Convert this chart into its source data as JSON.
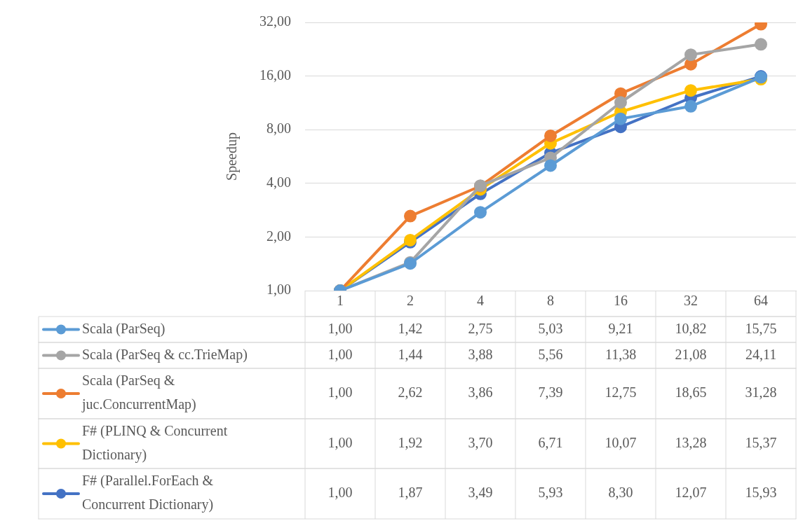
{
  "chart_data": {
    "type": "line",
    "ylabel": "Speedup",
    "categories": [
      "1",
      "2",
      "4",
      "8",
      "16",
      "32",
      "64"
    ],
    "log": "y",
    "ylim": [
      1,
      32
    ],
    "yticks": [
      {
        "value": 1,
        "label": "1,00"
      },
      {
        "value": 2,
        "label": "2,00"
      },
      {
        "value": 4,
        "label": "4,00"
      },
      {
        "value": 8,
        "label": "8,00"
      },
      {
        "value": 16,
        "label": "16,00"
      },
      {
        "value": 32,
        "label": "32,00"
      }
    ],
    "grid": "y",
    "legend": "bottom left",
    "marker": "circle",
    "series": [
      {
        "name": "Scala (ParSeq)",
        "color": "#5b9bd5",
        "values": [
          1.0,
          1.42,
          2.75,
          5.03,
          9.21,
          10.82,
          15.75
        ],
        "value_labels": [
          "1,00",
          "1,42",
          "2,75",
          "5,03",
          "9,21",
          "10,82",
          "15,75"
        ]
      },
      {
        "name": "Scala (ParSeq & cc.TrieMap)",
        "color": "#a5a5a5",
        "values": [
          1.0,
          1.44,
          3.88,
          5.56,
          11.38,
          21.08,
          24.11
        ],
        "value_labels": [
          "1,00",
          "1,44",
          "3,88",
          "5,56",
          "11,38",
          "21,08",
          "24,11"
        ]
      },
      {
        "name": "Scala (ParSeq & juc.ConcurrentMap)",
        "color": "#ed7d31",
        "values": [
          1.0,
          2.62,
          3.86,
          7.39,
          12.75,
          18.65,
          31.28
        ],
        "value_labels": [
          "1,00",
          "2,62",
          "3,86",
          "7,39",
          "12,75",
          "18,65",
          "31,28"
        ]
      },
      {
        "name": "F# (PLINQ & Concurrent Dictionary)",
        "color": "#ffc000",
        "values": [
          1.0,
          1.92,
          3.7,
          6.71,
          10.07,
          13.28,
          15.37
        ],
        "value_labels": [
          "1,00",
          "1,92",
          "3,70",
          "6,71",
          "10,07",
          "13,28",
          "15,37"
        ]
      },
      {
        "name": "F# (Parallel.ForEach & Concurrent Dictionary)",
        "color": "#4472c4",
        "values": [
          1.0,
          1.87,
          3.49,
          5.93,
          8.3,
          12.07,
          15.93
        ],
        "value_labels": [
          "1,00",
          "1,87",
          "3,49",
          "5,93",
          "8,30",
          "12,07",
          "15,93"
        ]
      }
    ]
  }
}
